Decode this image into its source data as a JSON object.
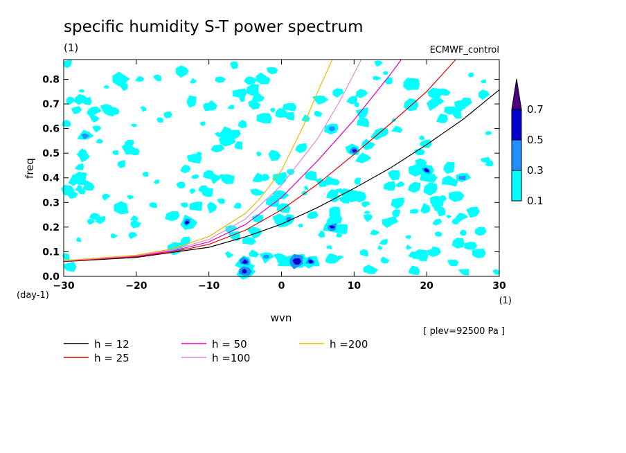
{
  "chart_data": {
    "type": "contour",
    "title": "specific humidity S-T power spectrum",
    "subtitle_left": "(1)",
    "subtitle_right": "ECMWF_control",
    "xlabel": "wvn",
    "ylabel": "freq",
    "x_unit_label": "(1)",
    "y_unit_label": "(day-1)",
    "annotation": "[ plev=92500 Pa ]",
    "xlim": [
      -30,
      30
    ],
    "ylim": [
      0.0,
      0.88
    ],
    "x_ticks": [
      -30,
      -20,
      -10,
      0,
      10,
      20,
      30
    ],
    "y_ticks": [
      0.0,
      0.1,
      0.2,
      0.3,
      0.4,
      0.5,
      0.6,
      0.7,
      0.8
    ],
    "y_tick_labels": [
      "0.0",
      "0.1",
      "0.2",
      "0.3",
      "0.4",
      "0.5",
      "0.6",
      "0.7",
      "0.8"
    ],
    "contour_levels": [
      {
        "label": "0.1",
        "color": "#00ffff"
      },
      {
        "label": "0.3",
        "color": "#1e90ff"
      },
      {
        "label": "0.5",
        "color": "#0000cd"
      },
      {
        "label": "0.7",
        "color": "#4b0082"
      }
    ],
    "dispersion_curves": [
      {
        "name": "h = 12",
        "color": "#000000",
        "points": [
          [
            -30,
            0.06
          ],
          [
            -20,
            0.077
          ],
          [
            -10,
            0.118
          ],
          [
            -5,
            0.16
          ],
          [
            0,
            0.212
          ],
          [
            5,
            0.28
          ],
          [
            10,
            0.357
          ],
          [
            15,
            0.44
          ],
          [
            20,
            0.535
          ],
          [
            25,
            0.637
          ],
          [
            30,
            0.757
          ]
        ]
      },
      {
        "name": "h = 25",
        "color": "#e00000",
        "points": [
          [
            -30,
            0.061
          ],
          [
            -20,
            0.08
          ],
          [
            -15,
            0.099
          ],
          [
            -10,
            0.13
          ],
          [
            -5,
            0.187
          ],
          [
            0,
            0.27
          ],
          [
            5,
            0.375
          ],
          [
            10,
            0.495
          ],
          [
            15,
            0.62
          ],
          [
            20,
            0.75
          ],
          [
            24,
            0.88
          ]
        ]
      },
      {
        "name": "h = 50",
        "color": "#e000c0",
        "points": [
          [
            -30,
            0.062
          ],
          [
            -20,
            0.082
          ],
          [
            -15,
            0.103
          ],
          [
            -10,
            0.14
          ],
          [
            -5,
            0.21
          ],
          [
            0,
            0.32
          ],
          [
            5,
            0.47
          ],
          [
            10,
            0.635
          ],
          [
            15,
            0.82
          ],
          [
            16.5,
            0.88
          ]
        ]
      },
      {
        "name": "h =100",
        "color": "#dd88dd",
        "points": [
          [
            -30,
            0.063
          ],
          [
            -20,
            0.084
          ],
          [
            -15,
            0.107
          ],
          [
            -10,
            0.15
          ],
          [
            -5,
            0.232
          ],
          [
            0,
            0.37
          ],
          [
            5,
            0.56
          ],
          [
            8,
            0.71
          ],
          [
            11,
            0.88
          ]
        ]
      },
      {
        "name": "h =200",
        "color": "#e8b800",
        "points": [
          [
            -30,
            0.064
          ],
          [
            -20,
            0.086
          ],
          [
            -15,
            0.112
          ],
          [
            -10,
            0.162
          ],
          [
            -5,
            0.255
          ],
          [
            -3,
            0.315
          ],
          [
            0,
            0.43
          ],
          [
            3,
            0.61
          ],
          [
            5,
            0.75
          ],
          [
            7,
            0.88
          ]
        ]
      }
    ],
    "legend": {
      "position": "bottom-left",
      "columns": 3
    }
  }
}
